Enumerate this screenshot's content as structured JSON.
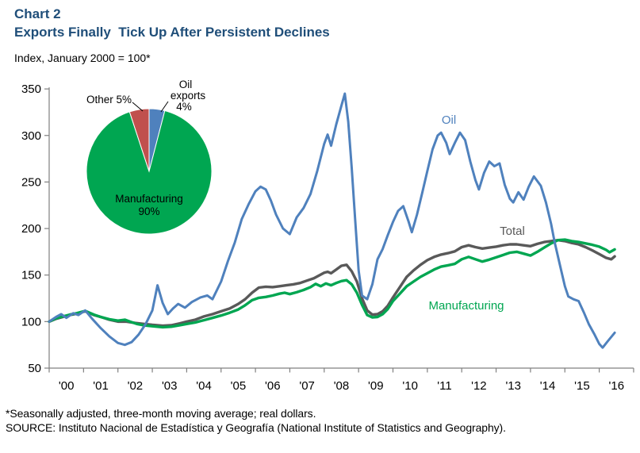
{
  "header": {
    "chart_label": "Chart 2",
    "title": "Exports Finally  Tick Up After Persistent Declines",
    "subtitle": "Index, January 2000 = 100*"
  },
  "footer": {
    "note": "*Seasonally adjusted, three-month moving average; real dollars.",
    "source": "SOURCE: Instituto Nacional de Estadística y Geografía (National Institute of Statistics and Geography)."
  },
  "colors": {
    "title_navy": "#1F4E79",
    "axis_gray": "#808080",
    "oil_blue": "#4F81BD",
    "total_gray": "#595959",
    "manufacturing_green": "#00A651",
    "other_red": "#C0504D"
  },
  "chart_data": {
    "type": "line",
    "title": "Exports Finally Tick Up After Persistent Declines",
    "subtitle": "Index, January 2000 = 100*",
    "xlabel": "",
    "ylabel": "Index, January 2000 = 100",
    "xlim": [
      2000,
      2017
    ],
    "ylim": [
      50,
      350
    ],
    "grid": false,
    "x_axis": {
      "labels": [
        "'00",
        "'01",
        "'02",
        "'03",
        "'04",
        "'05",
        "'06",
        "'07",
        "'08",
        "'09",
        "'10",
        "'11",
        "'12",
        "'13",
        "'14",
        "'15",
        "'16"
      ]
    },
    "y_axis": {
      "ticks": [
        50,
        100,
        150,
        200,
        250,
        300,
        350
      ]
    },
    "series": [
      {
        "name": "Total",
        "color": "#595959",
        "width": 3.4,
        "points": [
          [
            2000.0,
            100
          ],
          [
            2000.2,
            103
          ],
          [
            2000.4,
            105
          ],
          [
            2000.6,
            107
          ],
          [
            2000.8,
            108.5
          ],
          [
            2001.05,
            111
          ],
          [
            2001.3,
            107
          ],
          [
            2001.5,
            105
          ],
          [
            2001.75,
            102
          ],
          [
            2002.0,
            100
          ],
          [
            2002.25,
            100
          ],
          [
            2002.5,
            98.5
          ],
          [
            2002.75,
            97.5
          ],
          [
            2003.0,
            96.5
          ],
          [
            2003.3,
            95.5
          ],
          [
            2003.55,
            96
          ],
          [
            2003.8,
            98
          ],
          [
            2004.0,
            100
          ],
          [
            2004.25,
            102
          ],
          [
            2004.5,
            105.5
          ],
          [
            2004.75,
            108
          ],
          [
            2005.0,
            111
          ],
          [
            2005.25,
            114
          ],
          [
            2005.5,
            119
          ],
          [
            2005.7,
            124
          ],
          [
            2005.9,
            131
          ],
          [
            2006.1,
            136.5
          ],
          [
            2006.3,
            137.5
          ],
          [
            2006.5,
            137
          ],
          [
            2006.7,
            138
          ],
          [
            2006.9,
            139
          ],
          [
            2007.1,
            140
          ],
          [
            2007.3,
            141.5
          ],
          [
            2007.5,
            144
          ],
          [
            2007.7,
            146.5
          ],
          [
            2007.85,
            149.5
          ],
          [
            2008.0,
            152.5
          ],
          [
            2008.1,
            153.5
          ],
          [
            2008.2,
            152
          ],
          [
            2008.35,
            156
          ],
          [
            2008.5,
            160
          ],
          [
            2008.65,
            161
          ],
          [
            2008.8,
            154
          ],
          [
            2008.95,
            143
          ],
          [
            2009.1,
            125
          ],
          [
            2009.25,
            112
          ],
          [
            2009.4,
            107.5
          ],
          [
            2009.55,
            108
          ],
          [
            2009.7,
            111
          ],
          [
            2009.85,
            117
          ],
          [
            2010.0,
            126
          ],
          [
            2010.2,
            137
          ],
          [
            2010.4,
            148
          ],
          [
            2010.6,
            155
          ],
          [
            2010.8,
            161
          ],
          [
            2011.0,
            166
          ],
          [
            2011.2,
            169.5
          ],
          [
            2011.4,
            172
          ],
          [
            2011.6,
            173.5
          ],
          [
            2011.8,
            175.5
          ],
          [
            2012.0,
            180
          ],
          [
            2012.2,
            182
          ],
          [
            2012.4,
            180
          ],
          [
            2012.6,
            178.5
          ],
          [
            2012.8,
            179.5
          ],
          [
            2013.0,
            180.5
          ],
          [
            2013.2,
            182
          ],
          [
            2013.4,
            183
          ],
          [
            2013.6,
            183
          ],
          [
            2013.8,
            182
          ],
          [
            2014.0,
            181
          ],
          [
            2014.2,
            183.5
          ],
          [
            2014.4,
            185.5
          ],
          [
            2014.6,
            186.5
          ],
          [
            2014.8,
            187.5
          ],
          [
            2015.0,
            186.5
          ],
          [
            2015.2,
            184.5
          ],
          [
            2015.4,
            183
          ],
          [
            2015.6,
            180
          ],
          [
            2015.8,
            176.5
          ],
          [
            2016.0,
            172.5
          ],
          [
            2016.2,
            168.5
          ],
          [
            2016.35,
            167
          ],
          [
            2016.45,
            170
          ]
        ]
      },
      {
        "name": "Manufacturing",
        "color": "#00A651",
        "width": 3.4,
        "points": [
          [
            2000.0,
            100
          ],
          [
            2000.2,
            103.5
          ],
          [
            2000.4,
            105.5
          ],
          [
            2000.6,
            107.5
          ],
          [
            2000.8,
            109
          ],
          [
            2001.05,
            111.5
          ],
          [
            2001.3,
            107.5
          ],
          [
            2001.5,
            105
          ],
          [
            2001.75,
            102.5
          ],
          [
            2002.0,
            101
          ],
          [
            2002.2,
            102
          ],
          [
            2002.35,
            100
          ],
          [
            2002.55,
            97.5
          ],
          [
            2002.75,
            96
          ],
          [
            2003.0,
            95
          ],
          [
            2003.3,
            94
          ],
          [
            2003.55,
            94.5
          ],
          [
            2003.8,
            96
          ],
          [
            2004.0,
            97.5
          ],
          [
            2004.25,
            99
          ],
          [
            2004.5,
            101.5
          ],
          [
            2004.75,
            104
          ],
          [
            2005.0,
            106.5
          ],
          [
            2005.25,
            109.5
          ],
          [
            2005.5,
            113
          ],
          [
            2005.7,
            117.5
          ],
          [
            2005.9,
            123
          ],
          [
            2006.1,
            125.5
          ],
          [
            2006.3,
            126.5
          ],
          [
            2006.5,
            128
          ],
          [
            2006.7,
            130
          ],
          [
            2006.85,
            131
          ],
          [
            2007.0,
            129.5
          ],
          [
            2007.2,
            131.5
          ],
          [
            2007.4,
            134
          ],
          [
            2007.6,
            137
          ],
          [
            2007.75,
            140.5
          ],
          [
            2007.9,
            138
          ],
          [
            2008.05,
            141
          ],
          [
            2008.2,
            139
          ],
          [
            2008.35,
            141.5
          ],
          [
            2008.5,
            143.5
          ],
          [
            2008.65,
            144.5
          ],
          [
            2008.8,
            140
          ],
          [
            2008.95,
            131
          ],
          [
            2009.1,
            118
          ],
          [
            2009.25,
            107
          ],
          [
            2009.4,
            104.5
          ],
          [
            2009.55,
            105
          ],
          [
            2009.7,
            108
          ],
          [
            2009.85,
            113.5
          ],
          [
            2010.0,
            122
          ],
          [
            2010.2,
            130
          ],
          [
            2010.4,
            138
          ],
          [
            2010.6,
            143
          ],
          [
            2010.8,
            148
          ],
          [
            2011.0,
            152
          ],
          [
            2011.2,
            156
          ],
          [
            2011.4,
            159
          ],
          [
            2011.6,
            160.5
          ],
          [
            2011.8,
            162
          ],
          [
            2012.0,
            167
          ],
          [
            2012.2,
            169.5
          ],
          [
            2012.4,
            167
          ],
          [
            2012.6,
            164.5
          ],
          [
            2012.8,
            166.5
          ],
          [
            2013.0,
            169
          ],
          [
            2013.2,
            171.5
          ],
          [
            2013.4,
            174
          ],
          [
            2013.6,
            175
          ],
          [
            2013.8,
            173
          ],
          [
            2014.0,
            171
          ],
          [
            2014.2,
            175
          ],
          [
            2014.4,
            179.5
          ],
          [
            2014.6,
            184
          ],
          [
            2014.8,
            187.5
          ],
          [
            2015.0,
            188
          ],
          [
            2015.2,
            186.5
          ],
          [
            2015.4,
            185.5
          ],
          [
            2015.6,
            184
          ],
          [
            2015.8,
            182.5
          ],
          [
            2016.0,
            180.5
          ],
          [
            2016.2,
            177
          ],
          [
            2016.3,
            174.5
          ],
          [
            2016.45,
            177.5
          ]
        ]
      },
      {
        "name": "Oil",
        "color": "#4F81BD",
        "width": 3.0,
        "points": [
          [
            2000.0,
            100
          ],
          [
            2000.2,
            105
          ],
          [
            2000.35,
            108
          ],
          [
            2000.5,
            104
          ],
          [
            2000.7,
            109
          ],
          [
            2000.85,
            107
          ],
          [
            2001.05,
            112
          ],
          [
            2001.25,
            103
          ],
          [
            2001.5,
            93
          ],
          [
            2001.75,
            84
          ],
          [
            2002.0,
            77
          ],
          [
            2002.2,
            75
          ],
          [
            2002.4,
            78
          ],
          [
            2002.6,
            86
          ],
          [
            2002.8,
            97
          ],
          [
            2003.0,
            112
          ],
          [
            2003.15,
            139
          ],
          [
            2003.3,
            120
          ],
          [
            2003.45,
            108
          ],
          [
            2003.6,
            114
          ],
          [
            2003.75,
            119
          ],
          [
            2003.95,
            115
          ],
          [
            2004.15,
            121
          ],
          [
            2004.4,
            126
          ],
          [
            2004.6,
            128
          ],
          [
            2004.75,
            124
          ],
          [
            2005.0,
            143
          ],
          [
            2005.2,
            165
          ],
          [
            2005.4,
            185
          ],
          [
            2005.6,
            210
          ],
          [
            2005.8,
            226
          ],
          [
            2006.0,
            240
          ],
          [
            2006.15,
            245
          ],
          [
            2006.3,
            242
          ],
          [
            2006.45,
            230
          ],
          [
            2006.6,
            215
          ],
          [
            2006.8,
            200
          ],
          [
            2007.0,
            194
          ],
          [
            2007.2,
            212
          ],
          [
            2007.4,
            222
          ],
          [
            2007.6,
            237
          ],
          [
            2007.8,
            262
          ],
          [
            2008.0,
            291
          ],
          [
            2008.1,
            301
          ],
          [
            2008.2,
            289
          ],
          [
            2008.35,
            312
          ],
          [
            2008.5,
            332
          ],
          [
            2008.6,
            345
          ],
          [
            2008.7,
            315
          ],
          [
            2008.8,
            265
          ],
          [
            2008.9,
            210
          ],
          [
            2009.0,
            155
          ],
          [
            2009.1,
            128
          ],
          [
            2009.25,
            124
          ],
          [
            2009.4,
            140
          ],
          [
            2009.55,
            167
          ],
          [
            2009.7,
            178
          ],
          [
            2009.85,
            193
          ],
          [
            2010.0,
            207
          ],
          [
            2010.15,
            219
          ],
          [
            2010.3,
            224
          ],
          [
            2010.45,
            208
          ],
          [
            2010.55,
            196
          ],
          [
            2010.7,
            215
          ],
          [
            2010.85,
            238
          ],
          [
            2011.0,
            262
          ],
          [
            2011.15,
            285
          ],
          [
            2011.3,
            300
          ],
          [
            2011.4,
            303
          ],
          [
            2011.55,
            292
          ],
          [
            2011.65,
            280
          ],
          [
            2011.8,
            292
          ],
          [
            2011.95,
            303
          ],
          [
            2012.1,
            295
          ],
          [
            2012.25,
            272
          ],
          [
            2012.4,
            252
          ],
          [
            2012.5,
            242
          ],
          [
            2012.65,
            260
          ],
          [
            2012.8,
            272
          ],
          [
            2012.95,
            267
          ],
          [
            2013.1,
            270
          ],
          [
            2013.25,
            247
          ],
          [
            2013.4,
            232
          ],
          [
            2013.5,
            228
          ],
          [
            2013.65,
            239
          ],
          [
            2013.8,
            231
          ],
          [
            2013.95,
            245
          ],
          [
            2014.1,
            256
          ],
          [
            2014.3,
            246
          ],
          [
            2014.45,
            228
          ],
          [
            2014.6,
            205
          ],
          [
            2014.7,
            186
          ],
          [
            2014.85,
            162
          ],
          [
            2015.0,
            138
          ],
          [
            2015.1,
            127
          ],
          [
            2015.25,
            124
          ],
          [
            2015.4,
            122
          ],
          [
            2015.55,
            110
          ],
          [
            2015.7,
            97
          ],
          [
            2015.85,
            87
          ],
          [
            2016.0,
            76
          ],
          [
            2016.1,
            72
          ],
          [
            2016.25,
            79
          ],
          [
            2016.45,
            88
          ]
        ]
      }
    ],
    "pie": {
      "type": "pie",
      "slices": [
        {
          "label": "Oil exports",
          "value": 4,
          "color": "#4F81BD"
        },
        {
          "label": "Manufacturing",
          "value": 90,
          "color": "#00A651"
        },
        {
          "label": "Other",
          "value": 5,
          "color": "#C0504D"
        }
      ],
      "labels": {
        "other": "Other 5%",
        "oil_1": "Oil",
        "oil_2": "exports",
        "oil_3": "4%",
        "mfg_1": "Manufacturing",
        "mfg_2": "90%"
      }
    }
  }
}
